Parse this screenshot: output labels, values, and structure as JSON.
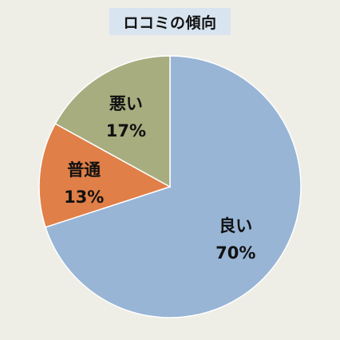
{
  "chart_data": {
    "type": "pie",
    "title": "ロコミの傾向",
    "start_angle_deg": 0,
    "direction": "clockwise",
    "slices": [
      {
        "label": "良い",
        "value": 70,
        "value_label": "70%",
        "color": "#98b5d6"
      },
      {
        "label": "普通",
        "value": 13,
        "value_label": "13%",
        "color": "#e07f47"
      },
      {
        "label": "悪い",
        "value": 17,
        "value_label": "17%",
        "color": "#a7ad7f"
      }
    ]
  }
}
